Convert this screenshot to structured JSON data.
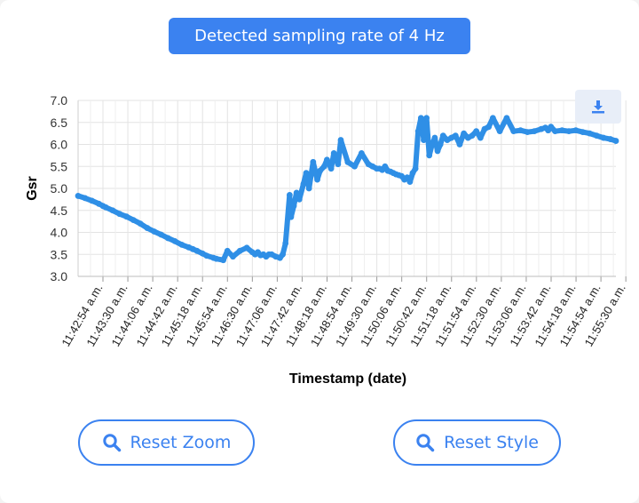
{
  "banner": {
    "text": "Detected sampling rate of 4 Hz"
  },
  "toolbar": {
    "download_icon": "download-icon"
  },
  "buttons": {
    "reset_zoom": {
      "label": "Reset Zoom",
      "icon": "search-icon"
    },
    "reset_style": {
      "label": "Reset Style",
      "icon": "search-icon"
    }
  },
  "colors": {
    "accent": "#3b82f0",
    "series": "#2f8fe6",
    "grid": "#e3e3e3"
  },
  "chart_data": {
    "type": "line",
    "xlabel": "Timestamp (date)",
    "ylabel": "Gsr",
    "ylim": [
      3.0,
      7.0
    ],
    "yticks": [
      "7.0",
      "6.5",
      "6.0",
      "5.5",
      "5.0",
      "4.5",
      "4.0",
      "3.5",
      "3.0"
    ],
    "xticks": [
      "11:42:54 a.m.",
      "11:43:30 a.m.",
      "11:44:06 a.m.",
      "11:44:42 a.m.",
      "11:45:18 a.m.",
      "11:45:54 a.m.",
      "11:46:30 a.m.",
      "11:47:06 a.m.",
      "11:47:42 a.m.",
      "11:48:18 a.m.",
      "11:48:54 a.m.",
      "11:49:30 a.m.",
      "11:50:06 a.m.",
      "11:50:42 a.m.",
      "11:51:18 a.m.",
      "11:51:54 a.m.",
      "11:52:30 a.m.",
      "11:53:06 a.m.",
      "11:53:42 a.m.",
      "11:54:18 a.m.",
      "11:54:54 a.m.",
      "11:55:30 a.m."
    ],
    "grid": true,
    "legend": "none",
    "series": [
      {
        "x": [
          0,
          10,
          20,
          30,
          36,
          40,
          50,
          60,
          70,
          80,
          90,
          100,
          110,
          120,
          130,
          140,
          150,
          160,
          166,
          172,
          180,
          186,
          196,
          200,
          210,
          216,
          224,
          234,
          244,
          252,
          256,
          258,
          260,
          264,
          268,
          272,
          276,
          280,
          286,
          292,
          296,
          300,
          306,
          308,
          312,
          316,
          320,
          326,
          330,
          334,
          340,
          346,
          350,
          356,
          360,
          366,
          370,
          376,
          380,
          390,
          400,
          410,
          420,
          426,
          432,
          436,
          440,
          444,
          448,
          452,
          456,
          460,
          464,
          468,
          472,
          476,
          480,
          484,
          488,
          492,
          496,
          500,
          504,
          508,
          512,
          516,
          520,
          524,
          528,
          534,
          540,
          546,
          552,
          558,
          564,
          570,
          576,
          582,
          588,
          594,
          600,
          610,
          620,
          630,
          640,
          650,
          660,
          670,
          676,
          680,
          684,
          690,
          700,
          710,
          720,
          730,
          740,
          750,
          760,
          770,
          778
        ],
        "y": [
          4.83,
          4.78,
          4.72,
          4.65,
          4.6,
          4.57,
          4.5,
          4.42,
          4.36,
          4.28,
          4.2,
          4.1,
          4.02,
          3.95,
          3.87,
          3.8,
          3.72,
          3.66,
          3.62,
          3.58,
          3.52,
          3.47,
          3.42,
          3.4,
          3.37,
          3.58,
          3.45,
          3.58,
          3.65,
          3.55,
          3.5,
          3.52,
          3.55,
          3.48,
          3.5,
          3.45,
          3.5,
          3.5,
          3.45,
          3.42,
          3.5,
          3.75,
          4.85,
          4.35,
          4.6,
          4.9,
          4.75,
          5.1,
          5.35,
          5.0,
          5.6,
          5.2,
          5.4,
          5.5,
          5.65,
          5.45,
          5.8,
          5.55,
          6.1,
          5.6,
          5.5,
          5.8,
          5.55,
          5.5,
          5.45,
          5.45,
          5.42,
          5.5,
          5.4,
          5.38,
          5.35,
          5.32,
          5.3,
          5.28,
          5.2,
          5.25,
          5.15,
          5.35,
          5.45,
          6.3,
          6.6,
          6.1,
          6.6,
          5.75,
          6.0,
          6.15,
          5.85,
          6.0,
          6.2,
          6.1,
          6.15,
          6.2,
          6.0,
          6.25,
          6.15,
          6.2,
          6.3,
          6.15,
          6.35,
          6.4,
          6.6,
          6.3,
          6.6,
          6.3,
          6.32,
          6.28,
          6.3,
          6.35,
          6.38,
          6.32,
          6.4,
          6.3,
          6.32,
          6.3,
          6.32,
          6.28,
          6.25,
          6.2,
          6.15,
          6.12,
          6.08
        ]
      }
    ]
  }
}
